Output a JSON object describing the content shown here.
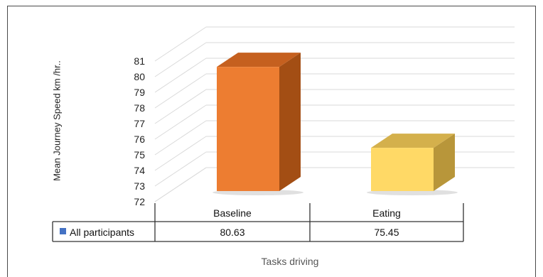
{
  "chart_data": {
    "type": "bar",
    "categories": [
      "Baseline",
      "Eating"
    ],
    "series": [
      {
        "name": "All participants",
        "values": [
          80.63,
          75.45
        ]
      }
    ],
    "title": "",
    "xlabel": "Tasks driving",
    "ylabel": "Mean  Journey Speed km /hr..",
    "ylim": [
      72,
      81
    ],
    "yticks": [
      72,
      73,
      74,
      75,
      76,
      77,
      78,
      79,
      80,
      81
    ],
    "grid": true,
    "data_table": true,
    "legend_marker_color": "#4472c4",
    "bar_colors": [
      {
        "front": "#ed7d31",
        "side": "#a34e14",
        "top": "#c5601f"
      },
      {
        "front": "#ffd966",
        "side": "#b8963a",
        "top": "#d4b04c"
      }
    ]
  }
}
